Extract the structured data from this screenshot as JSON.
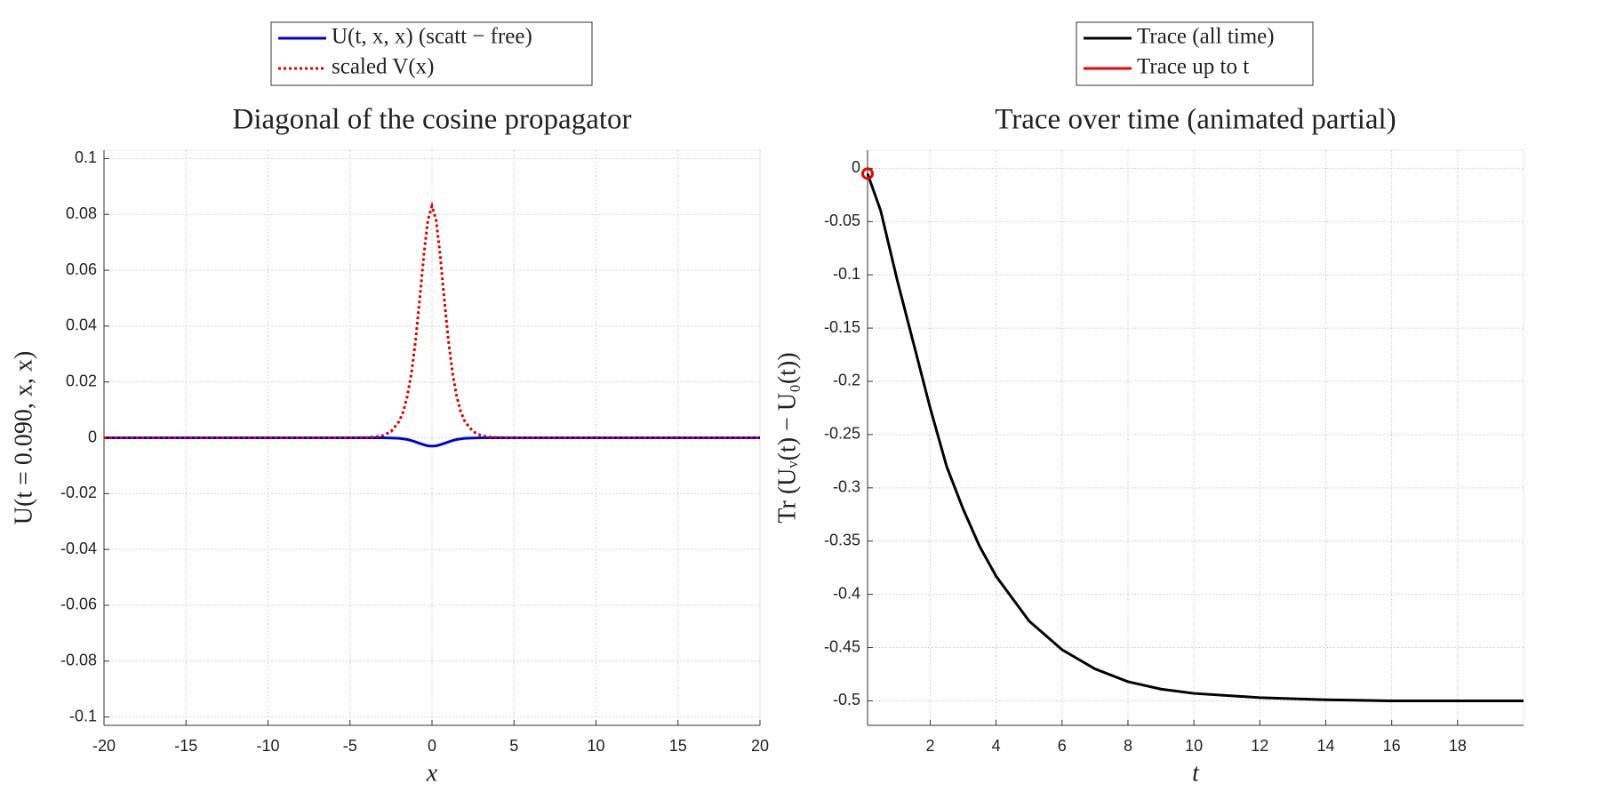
{
  "chart_data": [
    {
      "type": "line",
      "title": "Diagonal of the cosine propagator",
      "xlabel": "x",
      "ylabel": "U(t = 0.090, x, x)",
      "x": [
        -20,
        -10,
        -6,
        -5,
        -4,
        -3.5,
        -3,
        -2.5,
        -2,
        -1.75,
        -1.5,
        -1.25,
        -1,
        -0.75,
        -0.5,
        -0.25,
        0,
        0.25,
        0.5,
        0.75,
        1,
        1.25,
        1.5,
        1.75,
        2,
        2.5,
        3,
        3.5,
        4,
        5,
        6,
        10,
        20
      ],
      "series": [
        {
          "name": "U(t, x, x) (scatt − free)",
          "color": "#0000dd",
          "dash": "solid",
          "values": [
            0,
            0,
            0,
            0,
            0,
            0,
            0,
            -0.0001,
            -0.0002,
            -0.0004,
            -0.0006,
            -0.001,
            -0.0015,
            -0.002,
            -0.0025,
            -0.0029,
            -0.003,
            -0.0029,
            -0.0025,
            -0.002,
            -0.0015,
            -0.001,
            -0.0006,
            -0.0004,
            -0.0002,
            -0.0001,
            0,
            0,
            0,
            0,
            0,
            0,
            0
          ]
        },
        {
          "name": "scaled V(x)",
          "color": "#dd0000",
          "dash": "dotted",
          "values": [
            0,
            0,
            0,
            0,
            0.0001,
            0.0003,
            0.0008,
            0.0022,
            0.0059,
            0.0094,
            0.015,
            0.0233,
            0.0349,
            0.0495,
            0.0653,
            0.078,
            0.083,
            0.078,
            0.0653,
            0.0495,
            0.0349,
            0.0233,
            0.015,
            0.0094,
            0.0059,
            0.0022,
            0.0008,
            0.0003,
            0.0001,
            0,
            0,
            0,
            0
          ]
        }
      ],
      "xlim": [
        -20,
        20
      ],
      "xticks": [
        -20,
        -15,
        -10,
        -5,
        0,
        5,
        10,
        15,
        20
      ],
      "ylim": [
        -0.103,
        0.103
      ],
      "yticks": [
        -0.1,
        -0.08,
        -0.06,
        -0.04,
        -0.02,
        0,
        0.02,
        0.04,
        0.06,
        0.08,
        0.1
      ],
      "grid": true,
      "legend": "top"
    },
    {
      "type": "line",
      "title": "Trace over time (animated partial)",
      "xlabel": "t",
      "ylabel": "Tr (Uᵥ(t) − U₀(t))",
      "x": [
        0.1,
        0.5,
        1,
        1.5,
        2,
        2.5,
        3,
        3.5,
        4,
        5,
        6,
        7,
        8,
        9,
        10,
        12,
        14,
        16,
        18,
        20
      ],
      "series": [
        {
          "name": "Trace (all time)",
          "color": "#000000",
          "dash": "solid",
          "values": [
            -0.005,
            -0.04,
            -0.105,
            -0.165,
            -0.225,
            -0.28,
            -0.32,
            -0.355,
            -0.383,
            -0.425,
            -0.452,
            -0.47,
            -0.482,
            -0.489,
            -0.493,
            -0.497,
            -0.499,
            -0.5,
            -0.5,
            -0.5
          ]
        },
        {
          "name": "Trace up to t",
          "color": "#ee0000",
          "dash": "solid",
          "marker": "o",
          "values": [
            -0.005,
            null,
            null,
            null,
            null,
            null,
            null,
            null,
            null,
            null,
            null,
            null,
            null,
            null,
            null,
            null,
            null,
            null,
            null,
            null
          ]
        }
      ],
      "xlim": [
        0.1,
        20
      ],
      "xticks": [
        2,
        4,
        6,
        8,
        10,
        12,
        14,
        16,
        18
      ],
      "ylim": [
        -0.523,
        0.017
      ],
      "yticks": [
        -0.5,
        -0.45,
        -0.4,
        -0.35,
        -0.3,
        -0.25,
        -0.2,
        -0.15,
        -0.1,
        -0.05,
        0
      ],
      "grid": true,
      "legend": "top"
    }
  ]
}
